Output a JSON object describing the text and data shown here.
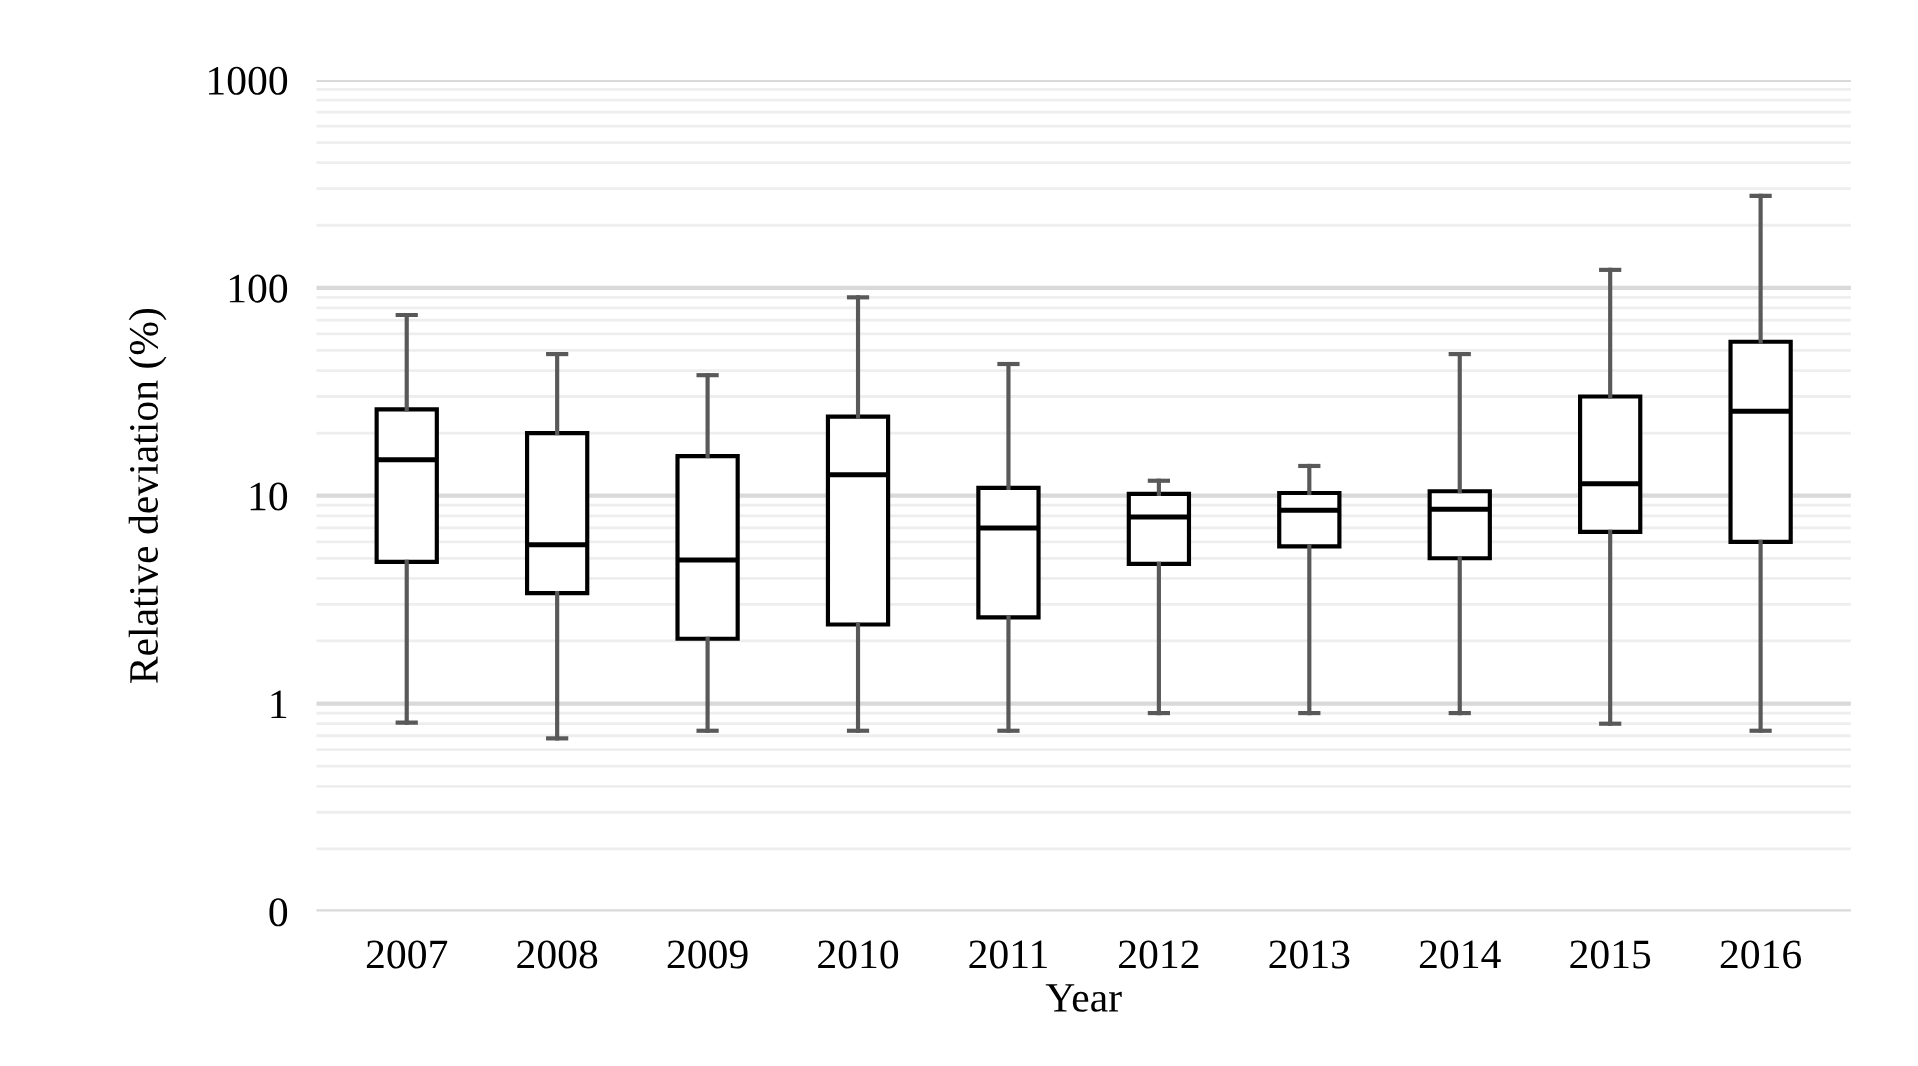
{
  "chart_data": {
    "type": "box",
    "xlabel": "Year",
    "ylabel": "Relative deviation (%)",
    "categories": [
      "2007",
      "2008",
      "2009",
      "2010",
      "2011",
      "2012",
      "2013",
      "2014",
      "2015",
      "2016"
    ],
    "boxes": [
      {
        "low": 0.81,
        "q1": 4.8,
        "median": 14.9,
        "q3": 26,
        "high": 74
      },
      {
        "low": 0.68,
        "q1": 3.4,
        "median": 5.8,
        "q3": 20,
        "high": 48
      },
      {
        "low": 0.74,
        "q1": 2.05,
        "median": 4.9,
        "q3": 15.5,
        "high": 38
      },
      {
        "low": 0.74,
        "q1": 2.4,
        "median": 12.6,
        "q3": 24,
        "high": 90
      },
      {
        "low": 0.74,
        "q1": 2.6,
        "median": 7.0,
        "q3": 10.9,
        "high": 43
      },
      {
        "low": 0.9,
        "q1": 4.7,
        "median": 7.9,
        "q3": 10.2,
        "high": 11.8
      },
      {
        "low": 0.9,
        "q1": 5.7,
        "median": 8.5,
        "q3": 10.3,
        "high": 13.9
      },
      {
        "low": 0.9,
        "q1": 5.0,
        "median": 8.6,
        "q3": 10.5,
        "high": 48
      },
      {
        "low": 0.8,
        "q1": 6.7,
        "median": 11.4,
        "q3": 30,
        "high": 122
      },
      {
        "low": 0.74,
        "q1": 6.0,
        "median": 25.5,
        "q3": 55,
        "high": 277
      }
    ],
    "color": "#000000",
    "log": "y",
    "ylim": [
      0.1,
      1000
    ],
    "yticks": [
      {
        "value": 0.1,
        "label": "0"
      },
      1,
      10,
      100,
      1000
    ],
    "grid": "y"
  }
}
